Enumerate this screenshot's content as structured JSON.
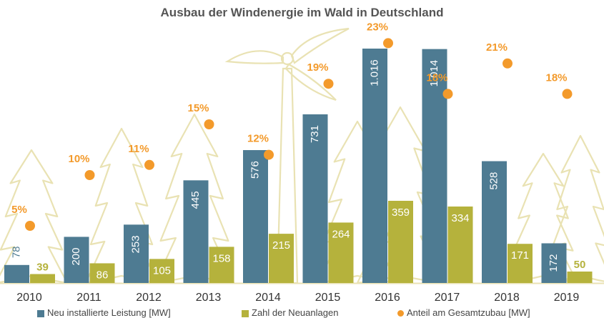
{
  "chart_data": {
    "type": "bar",
    "title": "Ausbau der Windenergie im Wald in Deutschland",
    "categories": [
      "2010",
      "2011",
      "2012",
      "2013",
      "2014",
      "2015",
      "2016",
      "2017",
      "2018",
      "2019"
    ],
    "series": [
      {
        "name": "Neu installierte Leistung [MW]",
        "type": "bar",
        "color": "#4e7b92",
        "values": [
          78,
          200,
          253,
          445,
          576,
          731,
          1016,
          1014,
          528,
          172
        ],
        "labels": [
          "78",
          "200",
          "253",
          "445",
          "576",
          "731",
          "1.016",
          "1.014",
          "528",
          "172"
        ]
      },
      {
        "name": "Zahl der Neuanlagen",
        "type": "bar",
        "color": "#b5b23c",
        "values": [
          39,
          86,
          105,
          158,
          215,
          264,
          359,
          334,
          171,
          50
        ],
        "labels": [
          "39",
          "86",
          "105",
          "158",
          "215",
          "264",
          "359",
          "334",
          "171",
          "50"
        ]
      },
      {
        "name": "Anteil am Gesamtzubau [MW]",
        "type": "scatter",
        "color": "#f39a2b",
        "values": [
          5,
          10,
          11,
          15,
          12,
          19,
          23,
          18,
          21,
          18
        ],
        "labels": [
          "5%",
          "10%",
          "11%",
          "15%",
          "12%",
          "19%",
          "23%",
          "18%",
          "21%",
          "18%"
        ]
      }
    ],
    "legend": "bottom",
    "grid": false
  }
}
